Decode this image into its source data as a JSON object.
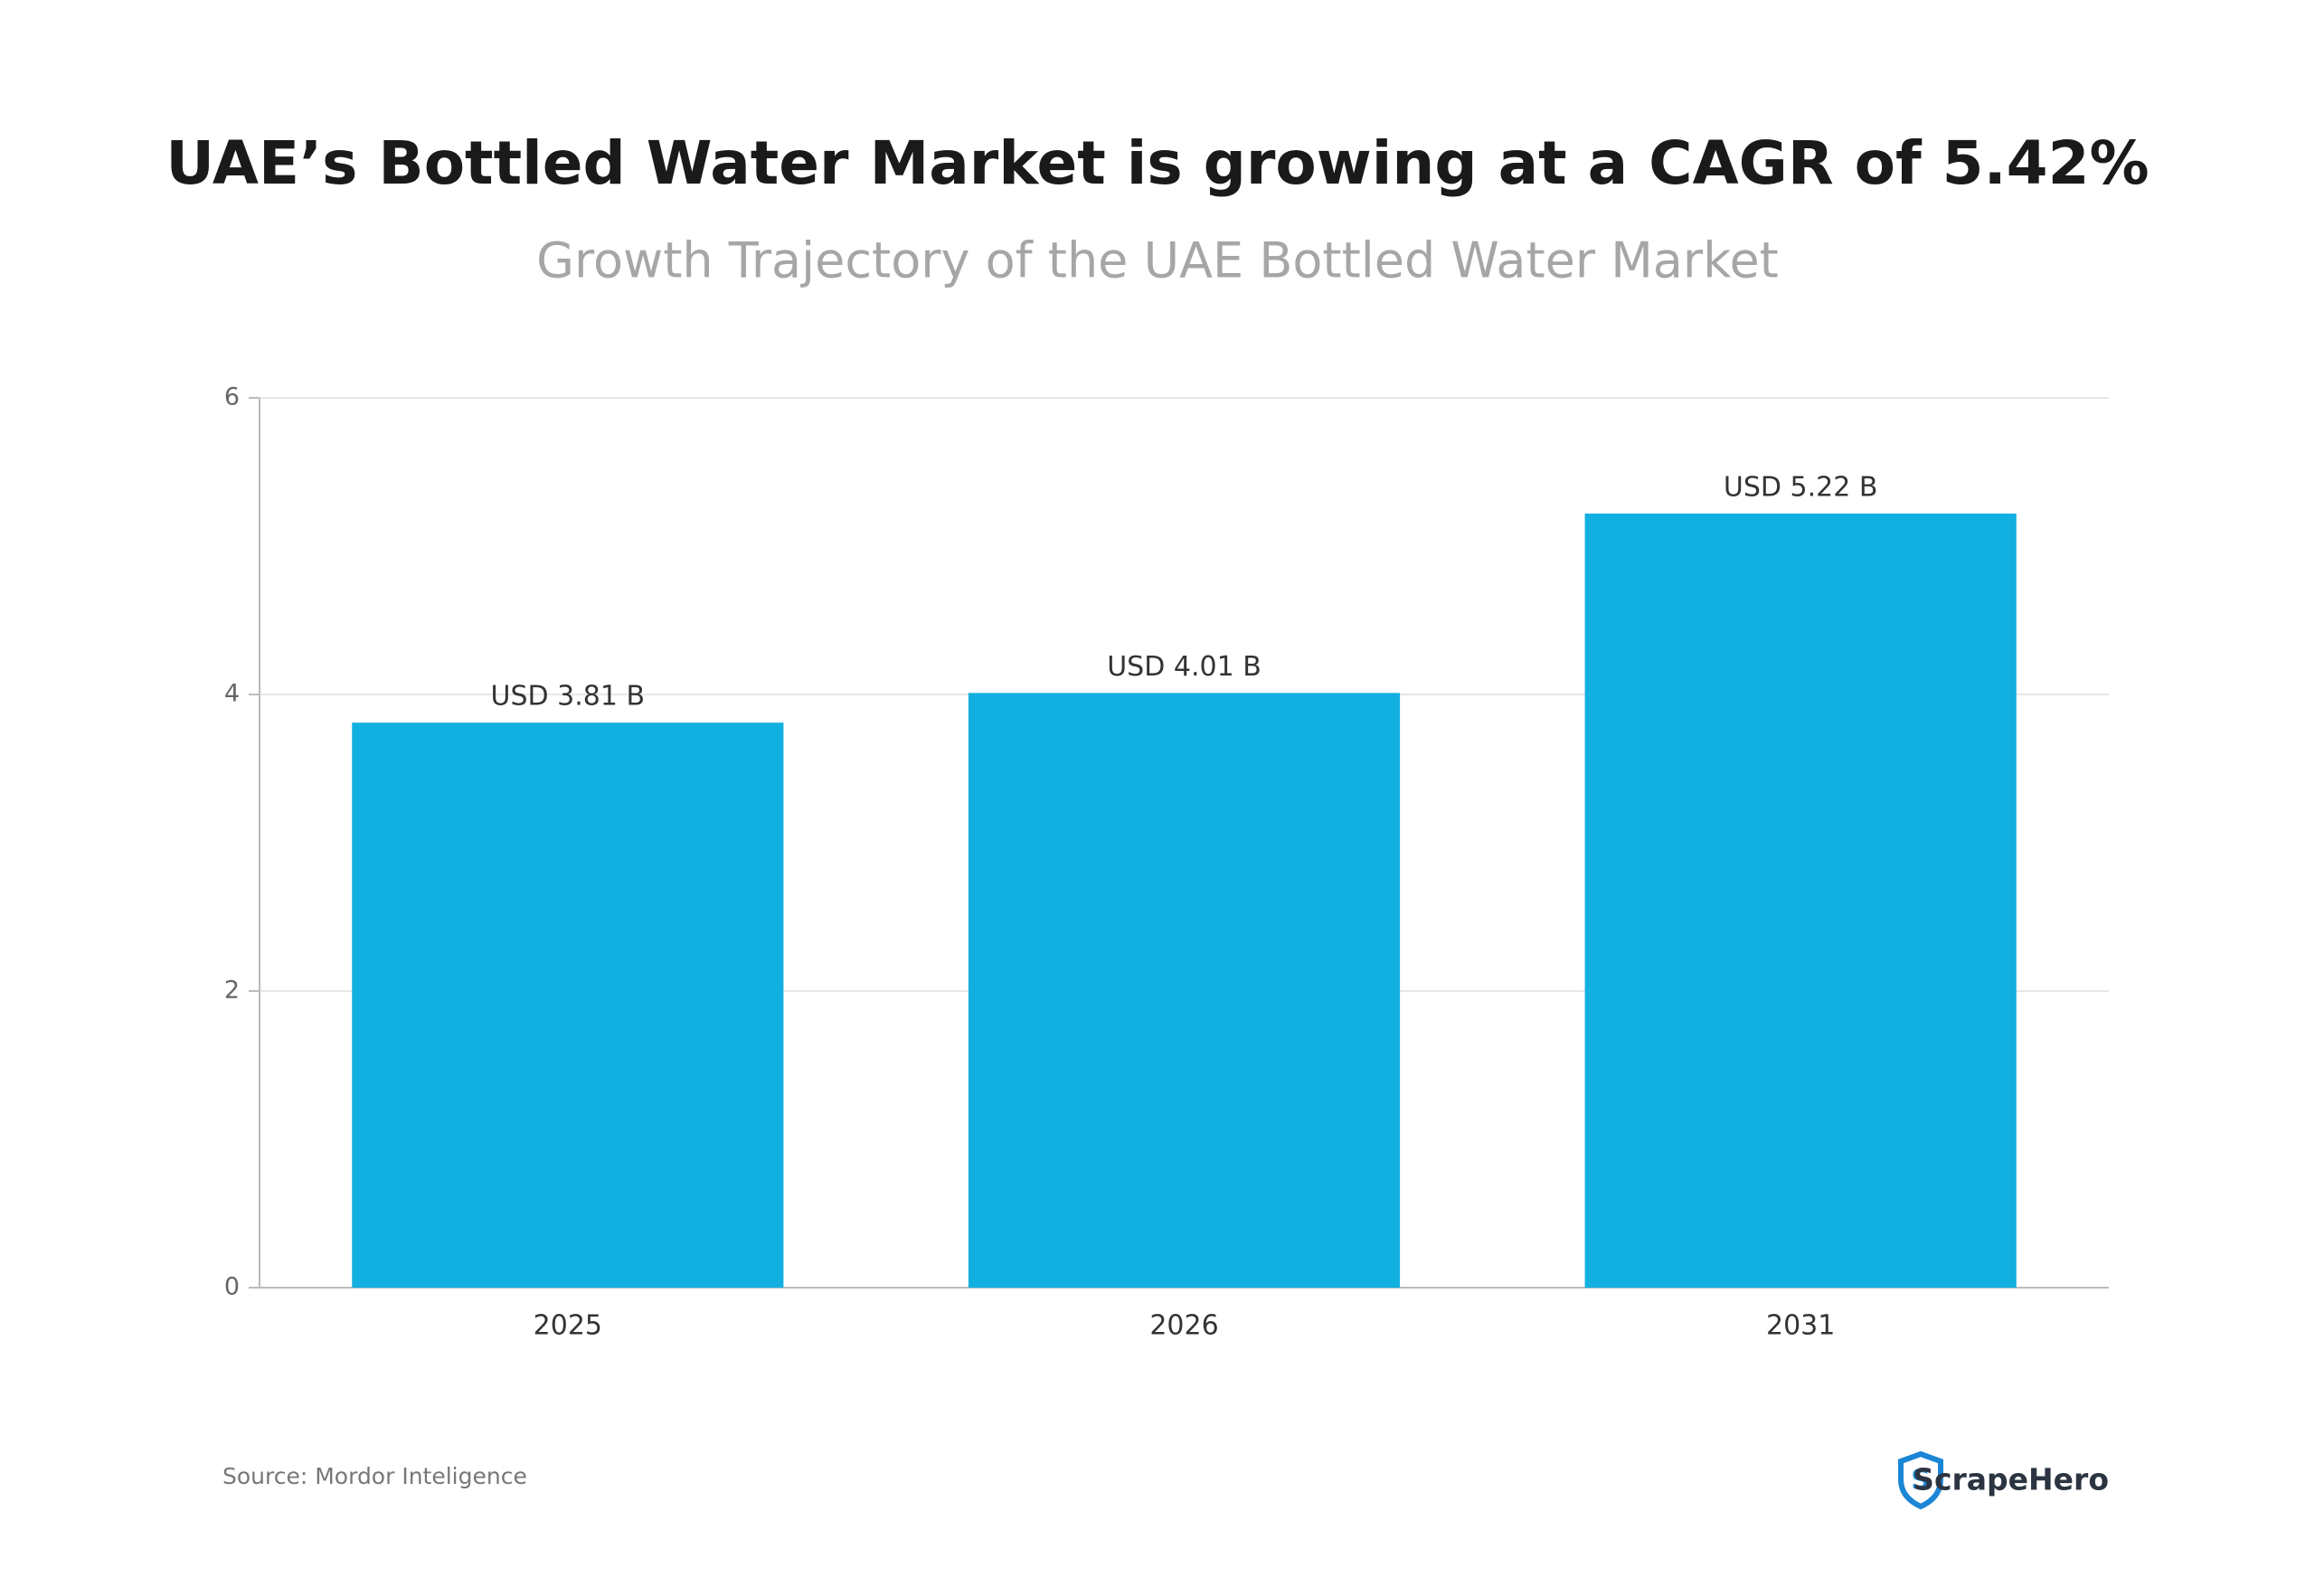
{
  "chart_data": {
    "type": "bar",
    "title": "UAE’s Bottled Water Market is growing at a CAGR of 5.42%",
    "subtitle": "Growth Trajectory of the UAE Bottled Water Market",
    "categories": [
      "2025",
      "2026",
      "2031"
    ],
    "values": [
      3.81,
      4.01,
      5.22
    ],
    "value_labels": [
      "USD 3.81 B",
      "USD 4.01 B",
      "USD 5.22 B"
    ],
    "color": "#12b0e0",
    "ylim": [
      0,
      6
    ],
    "yticks": [
      0,
      2,
      4,
      6
    ],
    "grid": true,
    "source": "Source: Mordor Inteligence",
    "brand": "ScrapeHero"
  }
}
